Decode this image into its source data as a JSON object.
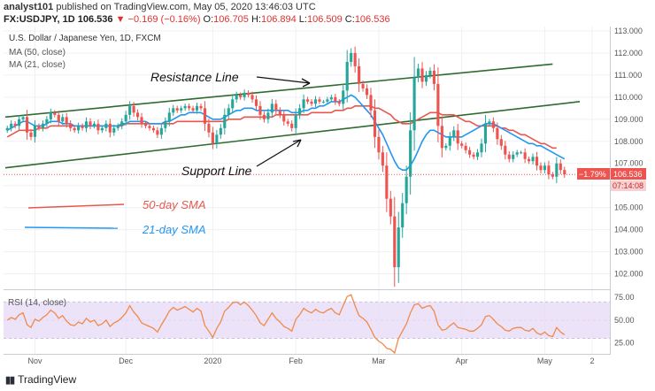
{
  "header": {
    "publisher": "analyst101",
    "published_text": "published on TradingView.com, May 05, 2020 13:46:03 UTC",
    "symbol": "FX:USDJPY, 1D",
    "price": "106.536",
    "change": "▼ −0.169 (−0.16%)",
    "ohlc": {
      "o": "106.705",
      "h": "106.894",
      "l": "106.509",
      "c": "106.536"
    }
  },
  "legend": {
    "title": "U.S. Dollar / Japanese Yen, 1D, FXCM",
    "ma1": "MA (50, close)",
    "ma2": "MA (21, close)"
  },
  "annotations": {
    "resistance": "Resistance Line",
    "support": "Support Line",
    "sma50": "50-day SMA",
    "sma21": "21-day SMA"
  },
  "price_tags": {
    "pct": "−1.79%",
    "price": "106.536",
    "countdown": "07:14:08"
  },
  "rsi": {
    "label": "RSI (14, close)"
  },
  "footer": {
    "brand": "TradingView"
  },
  "colors": {
    "up": "#26a69a",
    "down": "#ef5350",
    "ma50": "#e8574e",
    "ma21": "#2196f3",
    "trend": "#2e6b2e",
    "rsi": "#f08a4b",
    "rsiband": "#e8dcf6"
  },
  "chart_data": [
    {
      "type": "candlestick",
      "title": "U.S. Dollar / Japanese Yen, 1D, FXCM",
      "x_ticks": [
        "Nov",
        "Dec",
        "2020",
        "Feb",
        "Mar",
        "Apr",
        "May",
        "2"
      ],
      "y_ticks": [
        102.0,
        103.0,
        104.0,
        105.0,
        106.0,
        107.0,
        108.0,
        109.0,
        110.0,
        111.0,
        112.0,
        113.0
      ],
      "ylim": [
        101.3,
        113.2
      ],
      "grid": true,
      "closes": [
        108.6,
        108.8,
        108.7,
        109.0,
        109.1,
        108.4,
        108.2,
        108.7,
        108.6,
        108.8,
        109.0,
        109.3,
        109.2,
        108.9,
        109.1,
        108.8,
        108.6,
        108.5,
        108.7,
        108.6,
        108.9,
        108.7,
        108.8,
        108.5,
        108.6,
        108.8,
        108.4,
        108.6,
        108.7,
        108.9,
        109.2,
        109.6,
        109.3,
        109.1,
        108.8,
        108.7,
        108.6,
        108.5,
        108.3,
        108.6,
        108.9,
        109.3,
        109.5,
        109.4,
        109.5,
        109.6,
        109.5,
        109.4,
        109.6,
        109.5,
        108.8,
        108.4,
        107.9,
        108.3,
        108.6,
        109.2,
        109.5,
        109.9,
        110.1,
        110.0,
        110.2,
        110.1,
        109.9,
        109.6,
        109.2,
        109.0,
        109.3,
        109.7,
        109.4,
        109.2,
        108.9,
        108.8,
        108.6,
        109.2,
        109.5,
        109.9,
        109.8,
        109.7,
        109.9,
        109.8,
        109.8,
        109.9,
        110.0,
        109.8,
        109.7,
        110.3,
        111.6,
        112.0,
        111.4,
        110.6,
        110.4,
        110.1,
        109.4,
        108.2,
        107.5,
        106.9,
        105.4,
        104.6,
        102.3,
        104.1,
        105.2,
        106.4,
        108.5,
        110.9,
        111.3,
        110.7,
        111.0,
        111.2,
        110.6,
        108.7,
        107.7,
        107.8,
        108.2,
        108.5,
        107.9,
        107.8,
        107.6,
        107.4,
        107.3,
        107.5,
        107.9,
        108.8,
        108.9,
        108.6,
        108.1,
        107.8,
        107.4,
        107.2,
        107.4,
        107.5,
        107.5,
        107.2,
        107.1,
        107.3,
        106.9,
        106.7,
        106.9,
        106.5,
        106.4,
        107.0,
        106.7,
        106.5
      ],
      "series": [
        {
          "name": "MA (50, close)",
          "values": [
            108.2,
            108.3,
            108.4,
            108.5,
            108.5,
            108.5,
            108.5,
            108.5,
            108.6,
            108.6,
            108.6,
            108.7,
            108.7,
            108.7,
            108.7,
            108.7,
            108.7,
            108.7,
            108.7,
            108.7,
            108.7,
            108.7,
            108.7,
            108.7,
            108.7,
            108.7,
            108.7,
            108.7,
            108.7,
            108.7,
            108.8,
            108.8,
            108.8,
            108.8,
            108.8,
            108.8,
            108.8,
            108.8,
            108.8,
            108.8,
            108.8,
            108.8,
            108.8,
            108.9,
            108.9,
            108.9,
            108.9,
            108.9,
            108.9,
            108.9,
            108.9,
            108.9,
            108.9,
            108.9,
            108.9,
            108.9,
            109.0,
            109.0,
            109.0,
            109.0,
            109.1,
            109.1,
            109.1,
            109.1,
            109.1,
            109.1,
            109.1,
            109.1,
            109.2,
            109.2,
            109.2,
            109.2,
            109.2,
            109.2,
            109.2,
            109.2,
            109.2,
            109.3,
            109.3,
            109.3,
            109.3,
            109.3,
            109.3,
            109.4,
            109.4,
            109.4,
            109.5,
            109.5,
            109.6,
            109.6,
            109.6,
            109.6,
            109.6,
            109.5,
            109.5,
            109.4,
            109.3,
            109.2,
            109.0,
            108.9,
            108.8,
            108.8,
            108.8,
            108.9,
            109.0,
            109.1,
            109.2,
            109.3,
            109.3,
            109.3,
            109.2,
            109.2,
            109.2,
            109.2,
            109.1,
            109.0,
            108.9,
            108.9,
            108.8,
            108.7,
            108.7,
            108.7,
            108.7,
            108.7,
            108.7,
            108.6,
            108.6,
            108.5,
            108.5,
            108.4,
            108.3,
            108.3,
            108.2,
            108.1,
            108.0,
            107.9,
            107.9,
            107.8,
            107.7,
            107.7
          ]
        },
        {
          "name": "MA (21, close)",
          "values": [
            108.5,
            108.6,
            108.7,
            108.8,
            108.9,
            108.9,
            108.8,
            108.7,
            108.7,
            108.7,
            108.8,
            108.9,
            108.9,
            108.9,
            108.8,
            108.8,
            108.8,
            108.7,
            108.7,
            108.7,
            108.7,
            108.7,
            108.7,
            108.7,
            108.7,
            108.7,
            108.7,
            108.7,
            108.7,
            108.8,
            108.8,
            108.9,
            108.9,
            108.9,
            108.9,
            108.9,
            108.8,
            108.8,
            108.8,
            108.8,
            108.9,
            108.9,
            109.0,
            109.1,
            109.2,
            109.2,
            109.3,
            109.3,
            109.3,
            109.3,
            109.2,
            109.1,
            109.0,
            109.0,
            109.0,
            109.1,
            109.2,
            109.3,
            109.4,
            109.4,
            109.5,
            109.5,
            109.5,
            109.4,
            109.4,
            109.4,
            109.4,
            109.4,
            109.4,
            109.4,
            109.4,
            109.4,
            109.3,
            109.3,
            109.3,
            109.4,
            109.4,
            109.5,
            109.5,
            109.6,
            109.6,
            109.7,
            109.8,
            109.8,
            109.8,
            109.9,
            110.0,
            110.1,
            110.0,
            109.8,
            109.6,
            109.4,
            109.2,
            108.9,
            108.6,
            108.3,
            107.9,
            107.5,
            107.1,
            106.8,
            106.7,
            106.7,
            106.9,
            107.2,
            107.6,
            108.0,
            108.3,
            108.5,
            108.5,
            108.4,
            108.3,
            108.2,
            108.2,
            108.2,
            108.2,
            108.2,
            108.3,
            108.4,
            108.5,
            108.6,
            108.7,
            108.8,
            108.8,
            108.8,
            108.7,
            108.6,
            108.5,
            108.4,
            108.3,
            108.2,
            108.1,
            108.0,
            107.9,
            107.9,
            107.8,
            107.8,
            107.7,
            107.6,
            107.5,
            107.4,
            107.3,
            107.2
          ]
        }
      ]
    },
    {
      "type": "line",
      "title": "RSI (14, close)",
      "y_ticks": [
        25.0,
        50.0,
        75.0
      ],
      "ylim": [
        13,
        83
      ],
      "band": [
        30,
        70
      ],
      "series": [
        {
          "name": "RSI (14, close)",
          "values": [
            50,
            53,
            51,
            56,
            58,
            45,
            42,
            51,
            49,
            53,
            56,
            61,
            58,
            52,
            55,
            49,
            45,
            44,
            48,
            46,
            52,
            48,
            50,
            44,
            46,
            50,
            43,
            47,
            49,
            53,
            58,
            66,
            59,
            54,
            47,
            45,
            43,
            41,
            37,
            45,
            52,
            60,
            64,
            61,
            63,
            65,
            62,
            59,
            63,
            60,
            44,
            38,
            31,
            41,
            48,
            60,
            64,
            69,
            70,
            67,
            70,
            66,
            61,
            55,
            47,
            44,
            51,
            58,
            52,
            48,
            43,
            41,
            38,
            51,
            56,
            63,
            60,
            58,
            62,
            59,
            58,
            61,
            63,
            58,
            56,
            66,
            76,
            78,
            66,
            55,
            52,
            48,
            40,
            31,
            27,
            24,
            19,
            18,
            14,
            30,
            38,
            46,
            58,
            67,
            68,
            63,
            65,
            66,
            60,
            45,
            39,
            40,
            44,
            47,
            42,
            41,
            40,
            38,
            38,
            41,
            45,
            54,
            55,
            51,
            46,
            43,
            39,
            38,
            41,
            42,
            42,
            39,
            38,
            41,
            36,
            34,
            37,
            33,
            32,
            42,
            37,
            34
          ]
        }
      ]
    }
  ]
}
